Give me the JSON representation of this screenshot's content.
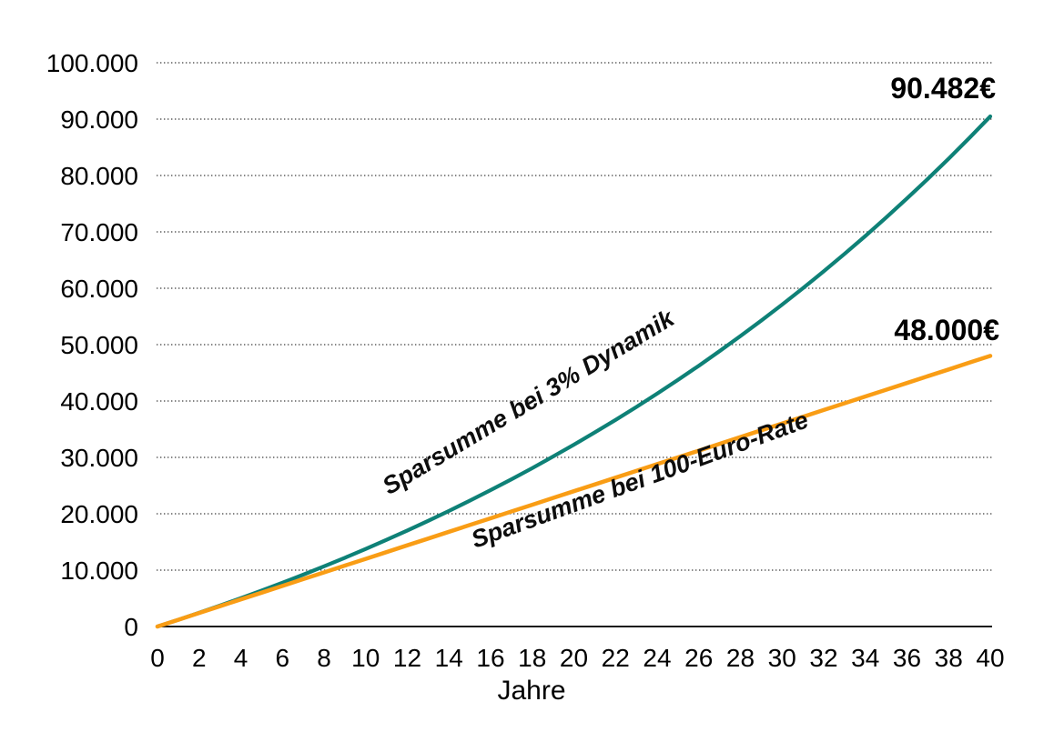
{
  "chart_data": {
    "type": "line",
    "title": "",
    "xlabel": "Jahre",
    "ylabel": "",
    "xlim": [
      0,
      40
    ],
    "ylim": [
      0,
      100000
    ],
    "x_ticks": [
      0,
      2,
      4,
      6,
      8,
      10,
      12,
      14,
      16,
      18,
      20,
      22,
      24,
      26,
      28,
      30,
      32,
      34,
      36,
      38,
      40
    ],
    "y_ticks": [
      0,
      10000,
      20000,
      30000,
      40000,
      50000,
      60000,
      70000,
      80000,
      90000,
      100000
    ],
    "y_tick_labels": [
      "0",
      "10.000",
      "20.000",
      "30.000",
      "40.000",
      "50.000",
      "60.000",
      "70.000",
      "80.000",
      "90.000",
      "100.000"
    ],
    "grid": "horizontal-dotted",
    "legend_position": "inline-rotated-labels",
    "x": [
      0,
      1,
      2,
      3,
      4,
      5,
      6,
      7,
      8,
      9,
      10,
      11,
      12,
      13,
      14,
      15,
      16,
      17,
      18,
      19,
      20,
      21,
      22,
      23,
      24,
      25,
      26,
      27,
      28,
      29,
      30,
      31,
      32,
      33,
      34,
      35,
      36,
      37,
      38,
      39,
      40
    ],
    "series": [
      {
        "name": "Sparsumme bei 3% Dynamik",
        "color": "#0E8177",
        "end_label": "90.482€",
        "values": [
          0,
          1200,
          2436,
          3709,
          5020,
          6371,
          7762,
          9195,
          10671,
          12191,
          13757,
          15369,
          17030,
          18741,
          20504,
          22319,
          24188,
          26114,
          28097,
          30140,
          32244,
          34412,
          36644,
          38943,
          41312,
          43751,
          46264,
          48852,
          51517,
          54263,
          57090,
          60003,
          63003,
          66093,
          69276,
          72554,
          75931,
          79409,
          82991,
          86681,
          90482
        ]
      },
      {
        "name": "Sparsumme bei 100-Euro-Rate",
        "color": "#F99D15",
        "end_label": "48.000€",
        "values": [
          0,
          1200,
          2400,
          3600,
          4800,
          6000,
          7200,
          8400,
          9600,
          10800,
          12000,
          13200,
          14400,
          15600,
          16800,
          18000,
          19200,
          20400,
          21600,
          22800,
          24000,
          25200,
          26400,
          27600,
          28800,
          30000,
          31200,
          32400,
          33600,
          34800,
          36000,
          37200,
          38400,
          39600,
          40800,
          42000,
          43200,
          44400,
          45600,
          46800,
          48000
        ]
      }
    ],
    "colors": {
      "axis": "#1a1a1a",
      "grid": "#3d3d3d",
      "text": "#000000",
      "background": "#ffffff"
    }
  }
}
